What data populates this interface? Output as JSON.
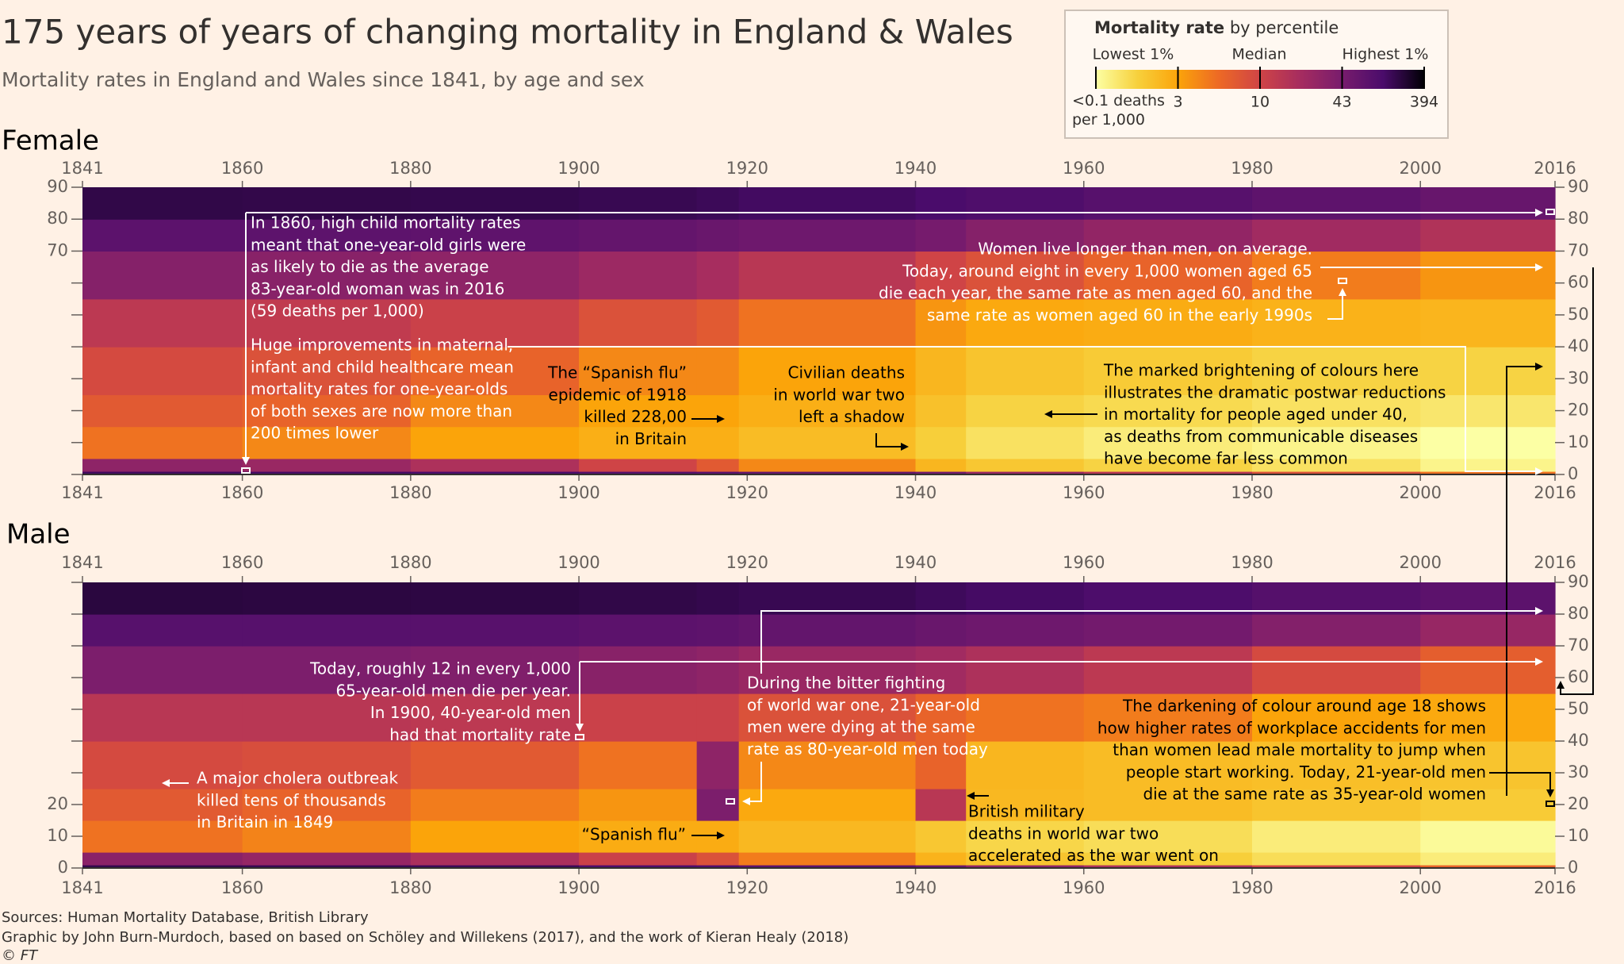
{
  "title": "175 years of years of changing mortality in England & Wales",
  "subtitle": "Mortality rates in England and Wales since 1841, by age and sex",
  "legend": {
    "title": "Mortality rate",
    "subtitle": "by percentile",
    "labels": [
      "Lowest 1%",
      "Median",
      "Highest 1%"
    ],
    "ticks": [
      {
        "value": 0.1,
        "label": "<0.1 deaths per 1,000"
      },
      3,
      10,
      43,
      394
    ],
    "colors": [
      "#fcffa4",
      "#f7d13d",
      "#fba40a",
      "#ed6925",
      "#cf4446",
      "#a52c60",
      "#781c6d",
      "#4a0c6b",
      "#000004"
    ]
  },
  "chart_data": [
    {
      "type": "heatmap",
      "title": "Female",
      "x": [
        1841,
        1860,
        1880,
        1900,
        1914,
        1919,
        1940,
        1946,
        1960,
        1980,
        2000,
        2016
      ],
      "y": [
        0,
        1,
        5,
        15,
        25,
        40,
        55,
        70,
        80,
        90
      ],
      "z": [
        [
          150,
          140,
          130,
          100,
          90,
          70,
          50,
          25,
          15,
          8,
          5
        ],
        [
          30,
          25,
          18,
          10,
          7,
          4,
          1.5,
          0.8,
          0.5,
          0.3,
          0.15
        ],
        [
          5,
          4,
          3,
          2,
          2,
          1.2,
          0.6,
          0.3,
          0.2,
          0.15,
          0.1
        ],
        [
          7,
          6,
          4,
          3,
          3,
          2,
          1,
          0.5,
          0.4,
          0.3,
          0.25
        ],
        [
          9,
          8,
          6,
          4,
          4,
          3,
          1.5,
          0.9,
          0.7,
          0.5,
          0.5
        ],
        [
          14,
          13,
          11,
          8,
          7,
          5,
          3.5,
          2.5,
          2.2,
          1.8,
          1.6
        ],
        [
          35,
          33,
          30,
          24,
          20,
          15,
          10,
          8,
          6,
          4.5,
          3.5
        ],
        [
          85,
          82,
          78,
          70,
          62,
          55,
          45,
          35,
          28,
          22,
          17
        ],
        [
          190,
          185,
          180,
          170,
          160,
          145,
          130,
          115,
          95,
          80,
          65
        ]
      ],
      "xlim": [
        1841,
        2016
      ],
      "xticks": [
        1841,
        1860,
        1880,
        1900,
        1920,
        1940,
        1960,
        1980,
        2000,
        2016
      ],
      "ylim": [
        0,
        90
      ],
      "yticks": [
        0,
        10,
        20,
        30,
        40,
        50,
        60,
        70,
        80,
        90
      ],
      "left_ytick_labels": [
        70,
        80,
        90
      ],
      "annotations": [
        [
          "In 1860, high child mortality rates",
          "meant that one-year-old girls were",
          "as likely to die as the average",
          "83-year-old woman was in 2016",
          "(59 deaths per 1,000)"
        ],
        [
          "Huge improvements in maternal,",
          "infant and child healthcare mean",
          "mortality rates for one-year-olds",
          "of both sexes are now more than",
          "200 times lower"
        ],
        [
          "The “Spanish flu”",
          "epidemic of 1918",
          "killed 228,00",
          "in Britain"
        ],
        [
          "Civilian deaths",
          "in world war two",
          "left a shadow"
        ],
        [
          "Women live longer than men, on average.",
          "Today, around eight in every 1,000 women aged 65",
          "die each year, the same rate as men aged 60, and the",
          "same rate as women aged 60 in the early 1990s"
        ],
        [
          "The marked brightening of colours here",
          "illustrates the dramatic postwar reductions",
          "in mortality for people aged under 40,",
          "as deaths from communicable diseases",
          "have become far less common"
        ]
      ]
    },
    {
      "type": "heatmap",
      "title": "Male",
      "x": [
        1841,
        1860,
        1880,
        1900,
        1914,
        1919,
        1940,
        1946,
        1960,
        1980,
        2000,
        2016
      ],
      "y": [
        0,
        1,
        5,
        15,
        25,
        40,
        55,
        70,
        80,
        90
      ],
      "z": [
        [
          180,
          170,
          160,
          125,
          110,
          85,
          60,
          30,
          18,
          10,
          6
        ],
        [
          32,
          27,
          19,
          11,
          8,
          4.5,
          1.7,
          0.9,
          0.6,
          0.35,
          0.2
        ],
        [
          5,
          4.2,
          3,
          2.2,
          2.2,
          1.4,
          0.8,
          0.45,
          0.35,
          0.2,
          0.12
        ],
        [
          7,
          6,
          4.5,
          3.5,
          40,
          2.5,
          15,
          1.4,
          1.2,
          0.9,
          0.7
        ],
        [
          9,
          8.5,
          7,
          5,
          30,
          4,
          6,
          1.5,
          1.2,
          1.1,
          0.9
        ],
        [
          15,
          15,
          14,
          11,
          11,
          8,
          6,
          5,
          4.5,
          3,
          2.5
        ],
        [
          40,
          40,
          38,
          33,
          30,
          25,
          22,
          18,
          14,
          9,
          6.5
        ],
        [
          95,
          95,
          92,
          85,
          80,
          72,
          62,
          55,
          48,
          36,
          26
        ],
        [
          210,
          205,
          200,
          190,
          180,
          170,
          155,
          140,
          120,
          100,
          85
        ]
      ],
      "xlim": [
        1841,
        2016
      ],
      "xticks": [
        1841,
        1860,
        1880,
        1900,
        1920,
        1940,
        1960,
        1980,
        2000,
        2016
      ],
      "ylim": [
        0,
        90
      ],
      "yticks": [
        0,
        10,
        20,
        30,
        40,
        50,
        60,
        70,
        80,
        90
      ],
      "left_ytick_labels": [
        0,
        10,
        20
      ],
      "annotations": [
        [
          "Today, roughly 12 in every 1,000",
          "65-year-old men die per year.",
          "In 1900, 40-year-old men",
          "had that mortality rate"
        ],
        [
          "A major cholera outbreak",
          "killed tens of thousands",
          "in Britain in 1849"
        ],
        [
          "“Spanish flu”"
        ],
        [
          "During the bitter fighting",
          "of world war one, 21-year-old",
          "men were dying at the same",
          "rate as 80-year-old men today"
        ],
        [
          "British military",
          "deaths in world war two",
          "accelerated as the war went on"
        ],
        [
          "The darkening of colour around age 18 shows",
          "how higher rates of workplace accidents for men",
          "than women lead male mortality to jump when",
          "people start working. Today, 21-year-old men",
          "die at the same rate as 35-year-old women"
        ]
      ]
    }
  ],
  "sources": [
    "Sources: Human Mortality Database, British Library",
    "Graphic by John Burn-Murdoch, based on based on Schöley and Willekens (2017), and the work of Kieran Healy (2018)",
    "© FT"
  ]
}
